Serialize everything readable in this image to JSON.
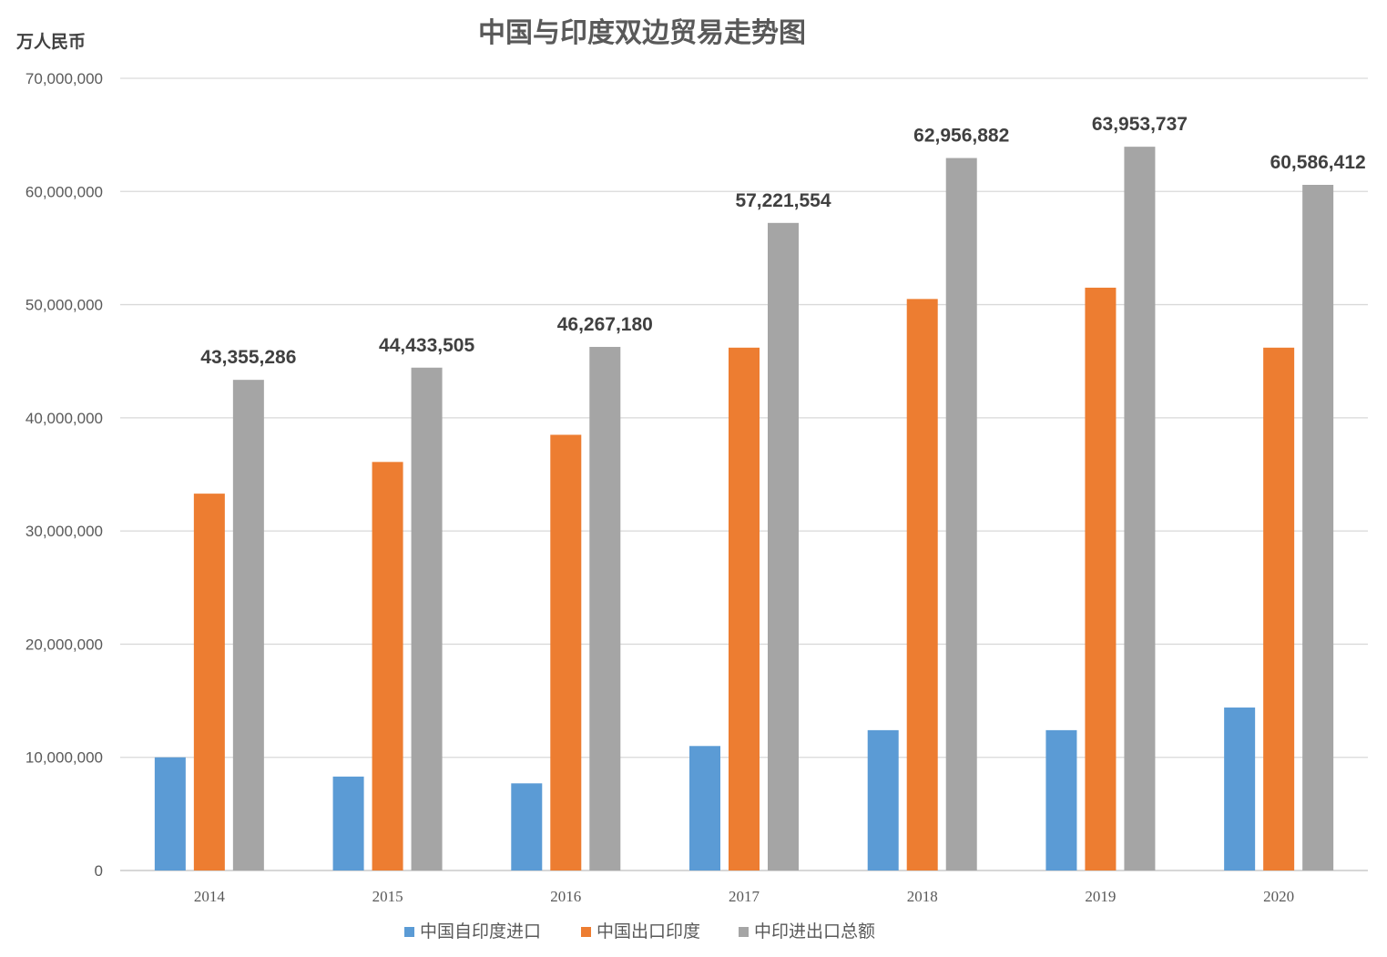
{
  "chart_data": {
    "type": "bar",
    "title": "中国与印度双边贸易走势图",
    "ylabel": "万人民币",
    "xlabel": "",
    "ylim": [
      0,
      70000000
    ],
    "yticks": [
      0,
      10000000,
      20000000,
      30000000,
      40000000,
      50000000,
      60000000,
      70000000
    ],
    "ytick_labels": [
      "0",
      "10,000,000",
      "20,000,000",
      "30,000,000",
      "40,000,000",
      "50,000,000",
      "60,000,000",
      "70,000,000"
    ],
    "grid": true,
    "legend_position": "bottom",
    "categories": [
      "2014",
      "2015",
      "2016",
      "2017",
      "2018",
      "2019",
      "2020"
    ],
    "series": [
      {
        "name": "中国自印度进口",
        "color": "#5B9BD5",
        "values": [
          10000000,
          8300000,
          7700000,
          11000000,
          12400000,
          12400000,
          14400000
        ]
      },
      {
        "name": "中国出口印度",
        "color": "#ED7D31",
        "values": [
          33300000,
          36100000,
          38500000,
          46200000,
          50500000,
          51500000,
          46200000
        ]
      },
      {
        "name": "中印进出口总额",
        "color": "#A5A5A5",
        "values": [
          43355286,
          44433505,
          46267180,
          57221554,
          62956882,
          63953737,
          60586412
        ],
        "data_labels": [
          "43,355,286",
          "44,433,505",
          "46,267,180",
          "57,221,554",
          "62,956,882",
          "63,953,737",
          "60,586,412"
        ]
      }
    ]
  }
}
